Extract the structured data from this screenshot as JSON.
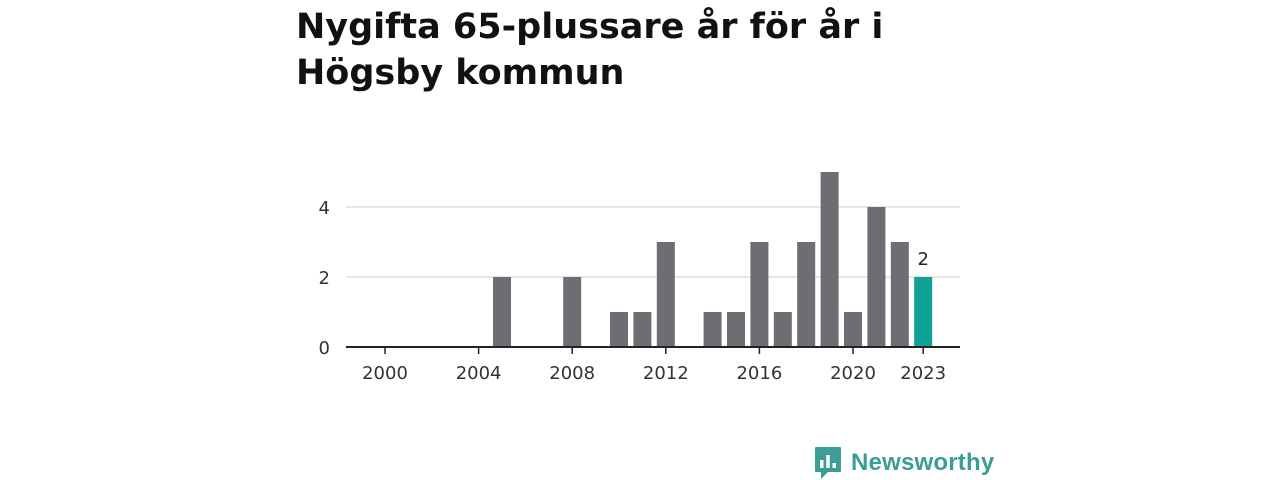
{
  "title": "Nygifta 65-plussare år för år i Högsby kommun",
  "brand": {
    "name": "Newsworthy",
    "logo_icon": "bar-chart-speech-bubble-icon"
  },
  "colors": {
    "bar": "#6e6d73",
    "highlight": "#0fa297",
    "grid": "#dddddd",
    "axis": "#222222",
    "brand": "#3c9d96"
  },
  "chart_data": {
    "type": "bar",
    "title": "Nygifta 65-plussare år för år i Högsby kommun",
    "xlabel": "",
    "ylabel": "",
    "categories": [
      2000,
      2001,
      2002,
      2003,
      2004,
      2005,
      2006,
      2007,
      2008,
      2009,
      2010,
      2011,
      2012,
      2013,
      2014,
      2015,
      2016,
      2017,
      2018,
      2019,
      2020,
      2021,
      2022,
      2023
    ],
    "values": [
      0,
      0,
      0,
      0,
      0,
      2,
      0,
      0,
      2,
      0,
      1,
      1,
      3,
      0,
      1,
      1,
      3,
      1,
      3,
      5,
      1,
      4,
      3,
      2
    ],
    "highlight_category": 2023,
    "highlight_label": "2",
    "x_ticks": [
      2000,
      2004,
      2008,
      2012,
      2016,
      2020,
      2023
    ],
    "y_ticks": [
      0,
      2,
      4
    ],
    "ylim": [
      0,
      5
    ],
    "grid": true,
    "legend": "none"
  }
}
